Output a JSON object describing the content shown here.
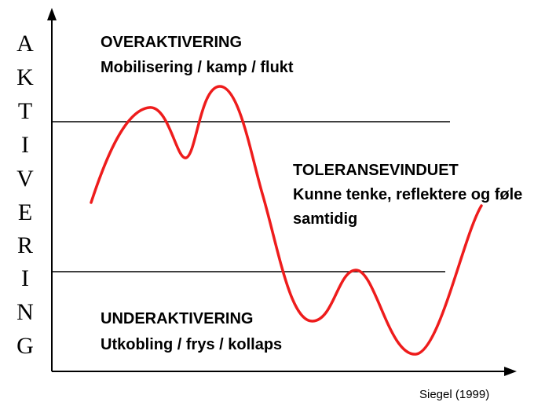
{
  "y_axis_label": [
    "A",
    "K",
    "T",
    "I",
    "V",
    "E",
    "R",
    "I",
    "N",
    "G"
  ],
  "zones": {
    "over": {
      "title": "OVERAKTIVERING",
      "subtitle": "Mobilisering / kamp / flukt"
    },
    "tolerance": {
      "title": "TOLERANSEVINDUET",
      "line1": "Kunne tenke, reflektere og føle",
      "line2": "samtidig"
    },
    "under": {
      "title": "UNDERAKTIVERING",
      "subtitle": "Utkobling / frys / kollaps"
    }
  },
  "citation": "Siegel (1999)",
  "colors": {
    "curve": "#ee1c1c",
    "axes": "#000000",
    "thresholds": "#000000"
  }
}
